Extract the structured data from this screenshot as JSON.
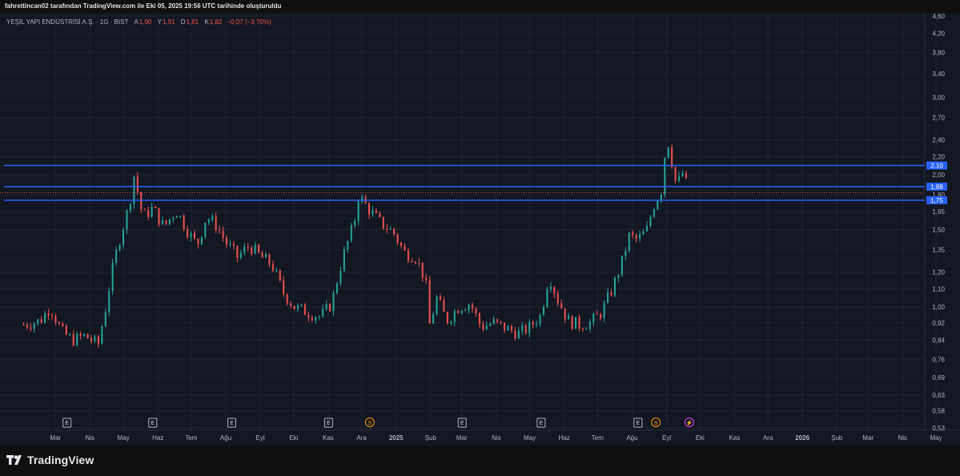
{
  "header": {
    "caption": "fahrettincan02 tarafından TradingView.com ile Eki 05, 2025 19:56 UTC tarihinde oluşturuldu"
  },
  "legend": {
    "symbol": "YEŞİL YAPI ENDÜSTRİSİ A.Ş. · 1G · BIST",
    "open_label": "A",
    "open_value": "1,90",
    "high_label": "Y",
    "high_value": "1,91",
    "low_label": "D",
    "low_value": "1,81",
    "close_label": "K",
    "close_value": "1,82",
    "change": "−0,07 (−3,70%)"
  },
  "brand": {
    "name": "TradingView",
    "icon": "tradingview-logo-icon"
  },
  "colors": {
    "background": "#131722",
    "grid": "#1f2330",
    "up": "#26a69a",
    "down": "#ef5350",
    "level_line": "#2962ff",
    "axis_text": "#b2b5be"
  },
  "chart_data": {
    "type": "candlestick",
    "y_scale": "log",
    "grid": true,
    "ylim": [
      0.53,
      4.6
    ],
    "y_ticks": [
      "4,60",
      "4,20",
      "3,80",
      "3,40",
      "3,00",
      "2,70",
      "2,40",
      "2,20",
      "2,00",
      "1,80",
      "1,65",
      "1,50",
      "1,35",
      "1,20",
      "1,10",
      "1,00",
      "0,92",
      "0,84",
      "0,76",
      "0,69",
      "0,63",
      "0,58",
      "0,53"
    ],
    "x_ticks": [
      "Mar",
      "Nis",
      "May",
      "Haz",
      "Tem",
      "Ağu",
      "Eyl",
      "Eki",
      "Kas",
      "Ara",
      "2025",
      "Şub",
      "Mar",
      "Nis",
      "May",
      "Haz",
      "Tem",
      "Ağu",
      "Eyl",
      "Eki",
      "Kas",
      "Ara",
      "2026",
      "Şub",
      "Mar",
      "Nis",
      "May"
    ],
    "horizontal_levels": [
      {
        "value": 2.1,
        "label": "2,10"
      },
      {
        "value": 1.88,
        "label": "1,88"
      },
      {
        "value": 1.75,
        "label": "1,75"
      }
    ],
    "last_price": 1.82,
    "price_path": [
      {
        "date": "2024-02-15",
        "close": 0.91
      },
      {
        "date": "2024-03-01",
        "close": 0.93
      },
      {
        "date": "2024-03-10",
        "close": 1.0
      },
      {
        "date": "2024-03-20",
        "close": 0.88
      },
      {
        "date": "2024-03-30",
        "close": 0.84
      },
      {
        "date": "2024-04-10",
        "close": 0.86
      },
      {
        "date": "2024-04-22",
        "close": 0.82
      },
      {
        "date": "2024-04-28",
        "close": 0.97
      },
      {
        "date": "2024-05-05",
        "close": 1.22
      },
      {
        "date": "2024-05-12",
        "close": 1.45
      },
      {
        "date": "2024-05-20",
        "close": 1.7
      },
      {
        "date": "2024-05-24",
        "close": 2.0
      },
      {
        "date": "2024-06-01",
        "close": 1.6
      },
      {
        "date": "2024-06-10",
        "close": 1.68
      },
      {
        "date": "2024-06-20",
        "close": 1.52
      },
      {
        "date": "2024-07-01",
        "close": 1.66
      },
      {
        "date": "2024-07-12",
        "close": 1.48
      },
      {
        "date": "2024-07-20",
        "close": 1.38
      },
      {
        "date": "2024-07-28",
        "close": 1.6
      },
      {
        "date": "2024-08-05",
        "close": 1.55
      },
      {
        "date": "2024-08-15",
        "close": 1.4
      },
      {
        "date": "2024-08-25",
        "close": 1.3
      },
      {
        "date": "2024-09-05",
        "close": 1.38
      },
      {
        "date": "2024-09-15",
        "close": 1.3
      },
      {
        "date": "2024-09-25",
        "close": 1.25
      },
      {
        "date": "2024-10-05",
        "close": 1.08
      },
      {
        "date": "2024-10-15",
        "close": 1.0
      },
      {
        "date": "2024-10-28",
        "close": 0.97
      },
      {
        "date": "2024-11-08",
        "close": 0.95
      },
      {
        "date": "2024-11-18",
        "close": 1.02
      },
      {
        "date": "2024-11-28",
        "close": 1.3
      },
      {
        "date": "2024-12-08",
        "close": 1.55
      },
      {
        "date": "2024-12-12",
        "close": 1.8
      },
      {
        "date": "2024-12-20",
        "close": 1.68
      },
      {
        "date": "2025-01-01",
        "close": 1.55
      },
      {
        "date": "2025-01-12",
        "close": 1.48
      },
      {
        "date": "2025-01-22",
        "close": 1.33
      },
      {
        "date": "2025-02-01",
        "close": 1.3
      },
      {
        "date": "2025-02-10",
        "close": 1.15
      },
      {
        "date": "2025-02-14",
        "close": 0.9
      },
      {
        "date": "2025-02-20",
        "close": 1.05
      },
      {
        "date": "2025-03-01",
        "close": 0.93
      },
      {
        "date": "2025-03-12",
        "close": 1.0
      },
      {
        "date": "2025-03-22",
        "close": 1.02
      },
      {
        "date": "2025-04-01",
        "close": 0.9
      },
      {
        "date": "2025-04-12",
        "close": 0.92
      },
      {
        "date": "2025-04-25",
        "close": 0.89
      },
      {
        "date": "2025-05-05",
        "close": 0.87
      },
      {
        "date": "2025-05-15",
        "close": 0.9
      },
      {
        "date": "2025-05-25",
        "close": 0.96
      },
      {
        "date": "2025-06-01",
        "close": 1.18
      },
      {
        "date": "2025-06-08",
        "close": 1.05
      },
      {
        "date": "2025-06-18",
        "close": 0.93
      },
      {
        "date": "2025-06-28",
        "close": 0.91
      },
      {
        "date": "2025-07-08",
        "close": 0.92
      },
      {
        "date": "2025-07-18",
        "close": 0.97
      },
      {
        "date": "2025-07-28",
        "close": 1.1
      },
      {
        "date": "2025-08-05",
        "close": 1.25
      },
      {
        "date": "2025-08-12",
        "close": 1.45
      },
      {
        "date": "2025-08-20",
        "close": 1.42
      },
      {
        "date": "2025-08-28",
        "close": 1.5
      },
      {
        "date": "2025-09-03",
        "close": 1.7
      },
      {
        "date": "2025-09-10",
        "close": 1.85
      },
      {
        "date": "2025-09-15",
        "close": 2.45
      },
      {
        "date": "2025-09-20",
        "close": 2.1
      },
      {
        "date": "2025-09-24",
        "close": 1.85
      },
      {
        "date": "2025-09-28",
        "close": 2.05
      },
      {
        "date": "2025-10-01",
        "close": 1.95
      },
      {
        "date": "2025-10-05",
        "close": 1.82
      }
    ],
    "event_markers": [
      {
        "date": "2024-03-25",
        "kind": "E"
      },
      {
        "date": "2024-06-10",
        "kind": "E"
      },
      {
        "date": "2024-08-20",
        "kind": "E"
      },
      {
        "date": "2024-11-15",
        "kind": "E"
      },
      {
        "date": "2024-12-22",
        "kind": "S"
      },
      {
        "date": "2025-03-15",
        "kind": "E"
      },
      {
        "date": "2025-05-25",
        "kind": "E"
      },
      {
        "date": "2025-08-20",
        "kind": "E"
      },
      {
        "date": "2025-09-05",
        "kind": "S"
      },
      {
        "date": "2025-10-05",
        "kind": "⚡"
      }
    ]
  }
}
